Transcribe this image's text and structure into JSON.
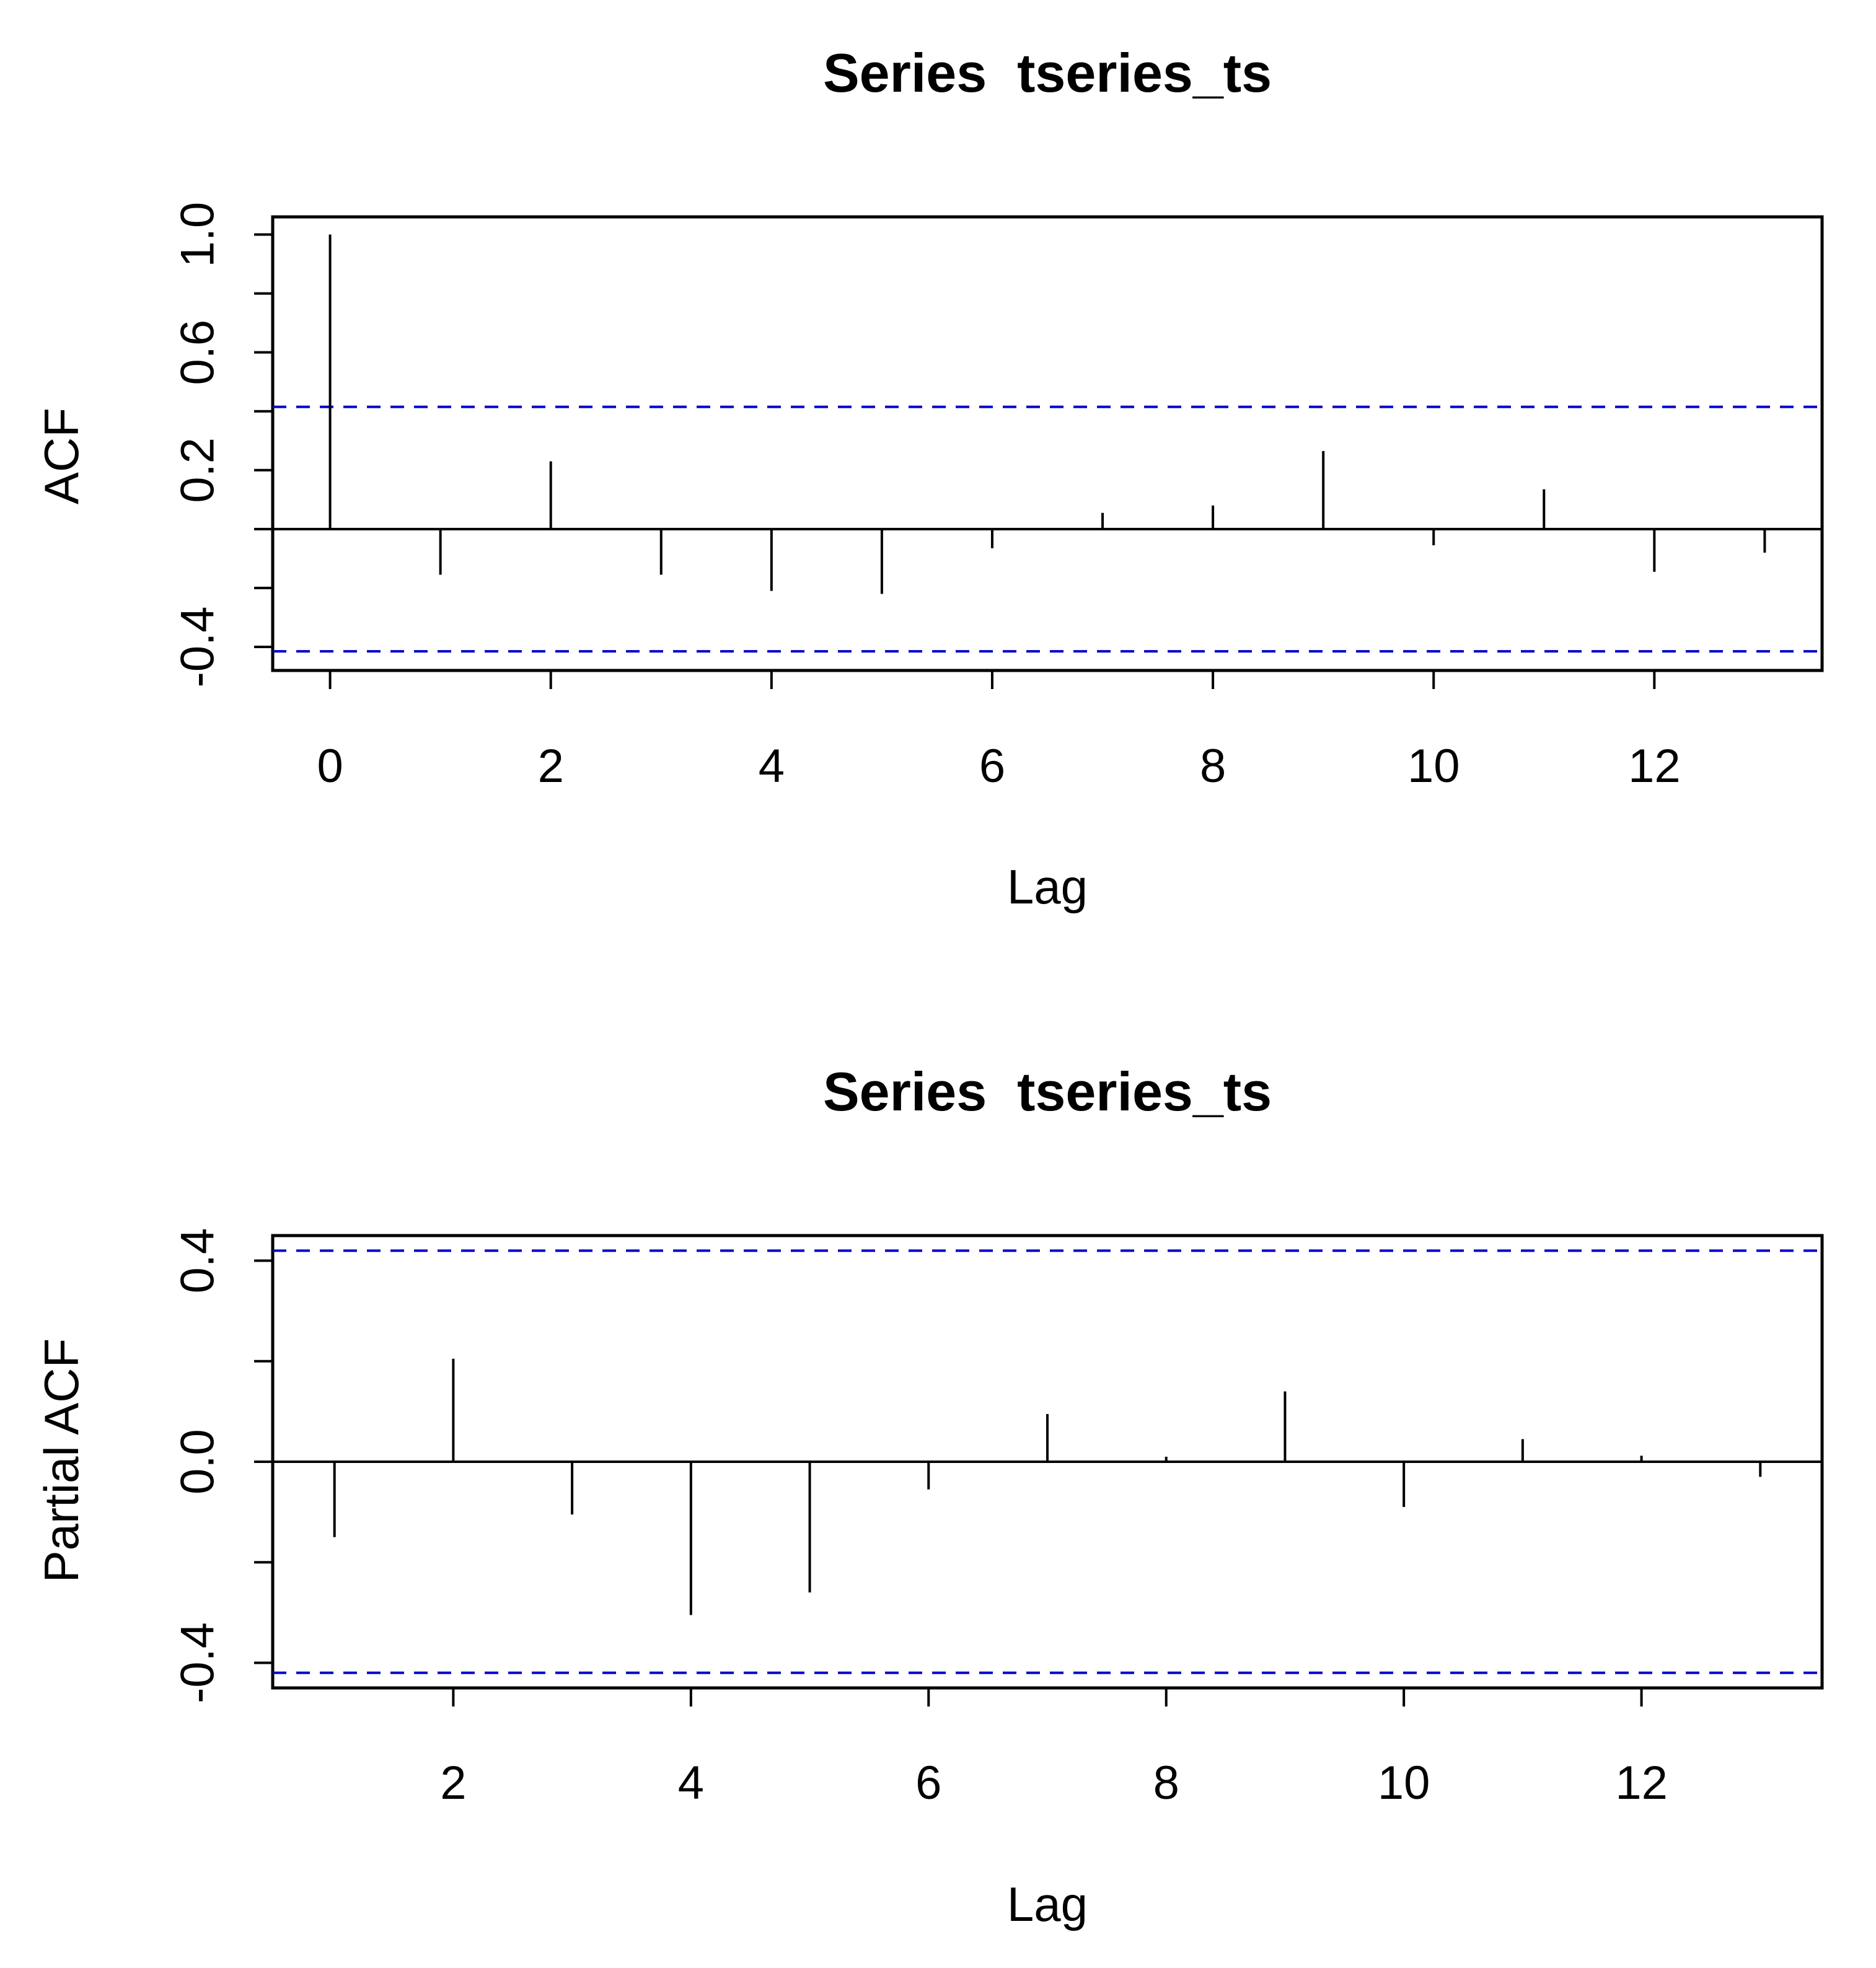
{
  "chart_data": [
    {
      "type": "bar",
      "title": "Series  tseries_ts",
      "xlabel": "Lag",
      "ylabel": "ACF",
      "xlim": [
        -0.52,
        13.52
      ],
      "ylim": [
        -0.48,
        1.06
      ],
      "xticks": [
        0,
        2,
        4,
        6,
        8,
        10,
        12
      ],
      "yticks": [
        -0.4,
        -0.2,
        0.0,
        0.2,
        0.4,
        0.6,
        0.8,
        1.0
      ],
      "ytick_labels": [
        "-0.4",
        "",
        "",
        "0.2",
        "",
        "0.6",
        "",
        "1.0"
      ],
      "ci_color": "#0000cc",
      "ci": [
        0.415,
        -0.415
      ],
      "x": [
        0,
        1,
        2,
        3,
        4,
        5,
        6,
        7,
        8,
        9,
        10,
        11,
        12,
        13
      ],
      "values": [
        1.0,
        -0.155,
        0.23,
        -0.155,
        -0.21,
        -0.22,
        -0.065,
        0.055,
        0.08,
        0.265,
        -0.055,
        0.135,
        -0.145,
        -0.08
      ]
    },
    {
      "type": "bar",
      "title": "Series  tseries_ts",
      "xlabel": "Lag",
      "ylabel": "Partial ACF",
      "xlim": [
        0.48,
        13.52
      ],
      "ylim": [
        -0.45,
        0.45
      ],
      "xticks": [
        2,
        4,
        6,
        8,
        10,
        12
      ],
      "yticks": [
        -0.4,
        -0.2,
        0.0,
        0.2,
        0.4
      ],
      "ytick_labels": [
        "-0.4",
        "",
        "0.0",
        "",
        "0.4"
      ],
      "ci_color": "#0000cc",
      "ci": [
        0.42,
        -0.42
      ],
      "x": [
        1,
        2,
        3,
        4,
        5,
        6,
        7,
        8,
        9,
        10,
        11,
        12,
        13
      ],
      "values": [
        -0.15,
        0.205,
        -0.105,
        -0.305,
        -0.26,
        -0.055,
        0.095,
        0.01,
        0.14,
        -0.09,
        0.045,
        0.012,
        -0.03
      ]
    }
  ]
}
